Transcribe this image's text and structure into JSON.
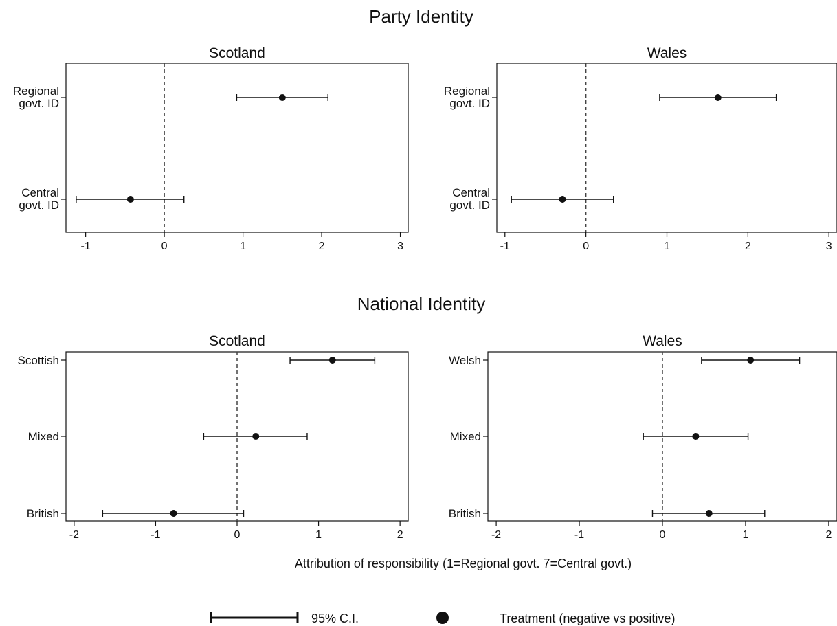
{
  "section_titles": [
    "Party Identity",
    "National Identity"
  ],
  "xlabel": "Attribution of responsibility (1=Regional govt. 7=Central govt.)",
  "legend": {
    "ci_label": "95% C.I.",
    "point_label": "Treatment (negative vs positive)"
  },
  "chart_data": [
    {
      "type": "scatter",
      "section": "Party Identity",
      "title": "Scotland",
      "categories": [
        [
          "Regional",
          "govt. ID"
        ],
        [
          "Central",
          "govt. ID"
        ]
      ],
      "estimates": [
        1.5,
        -0.43
      ],
      "ci_low": [
        0.92,
        -1.12
      ],
      "ci_high": [
        2.08,
        0.25
      ],
      "xlim": [
        -1.25,
        3.1
      ],
      "xticks": [
        -1,
        0,
        1,
        2,
        3
      ],
      "reference_line": 0
    },
    {
      "type": "scatter",
      "section": "Party Identity",
      "title": "Wales",
      "categories": [
        [
          "Regional",
          "govt. ID"
        ],
        [
          "Central",
          "govt. ID"
        ]
      ],
      "estimates": [
        1.63,
        -0.29
      ],
      "ci_low": [
        0.91,
        -0.92
      ],
      "ci_high": [
        2.35,
        0.34
      ],
      "xlim": [
        -1.1,
        3.1
      ],
      "xticks": [
        -1,
        0,
        1,
        2,
        3
      ],
      "reference_line": 0
    },
    {
      "type": "scatter",
      "section": "National Identity",
      "title": "Scotland",
      "categories": [
        [
          "Scottish"
        ],
        [
          "Mixed"
        ],
        [
          "British"
        ]
      ],
      "estimates": [
        1.17,
        0.23,
        -0.78
      ],
      "ci_low": [
        0.65,
        -0.41,
        -1.65
      ],
      "ci_high": [
        1.69,
        0.86,
        0.08
      ],
      "xlim": [
        -2.1,
        2.1
      ],
      "xticks": [
        -2,
        -1,
        0,
        1,
        2
      ],
      "reference_line": 0
    },
    {
      "type": "scatter",
      "section": "National Identity",
      "title": "Wales",
      "categories": [
        [
          "Welsh"
        ],
        [
          "Mixed"
        ],
        [
          "British"
        ]
      ],
      "estimates": [
        1.06,
        0.4,
        0.56
      ],
      "ci_low": [
        0.47,
        -0.23,
        -0.12
      ],
      "ci_high": [
        1.65,
        1.03,
        1.23
      ],
      "xlim": [
        -2.1,
        2.1
      ],
      "xticks": [
        -2,
        -1,
        0,
        1,
        2
      ],
      "reference_line": 0
    }
  ]
}
